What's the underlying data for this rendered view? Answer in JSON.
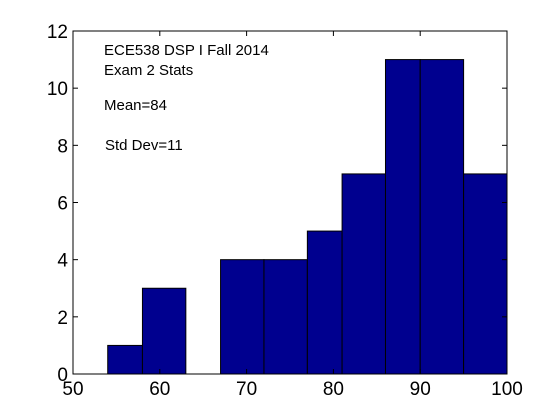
{
  "chart_data": {
    "type": "bar",
    "subtype": "histogram",
    "bins": [
      {
        "start": 54,
        "end": 58,
        "count": 1
      },
      {
        "start": 58,
        "end": 63,
        "count": 3
      },
      {
        "start": 63,
        "end": 67,
        "count": 0
      },
      {
        "start": 67,
        "end": 72,
        "count": 4
      },
      {
        "start": 72,
        "end": 77,
        "count": 4
      },
      {
        "start": 77,
        "end": 81,
        "count": 5
      },
      {
        "start": 81,
        "end": 86,
        "count": 7
      },
      {
        "start": 86,
        "end": 90,
        "count": 11
      },
      {
        "start": 90,
        "end": 95,
        "count": 11
      },
      {
        "start": 95,
        "end": 100,
        "count": 7
      }
    ],
    "xlim": [
      50,
      100
    ],
    "ylim": [
      0,
      12
    ],
    "xticks": [
      50,
      60,
      70,
      80,
      90,
      100
    ],
    "yticks": [
      0,
      2,
      4,
      6,
      8,
      10,
      12
    ],
    "title": "",
    "xlabel": "",
    "ylabel": "",
    "annotations": [
      "ECE538 DSP I Fall 2014",
      "Exam 2 Stats",
      "Mean=84",
      "Std Dev=11"
    ],
    "bar_color": "#00008f",
    "edge_color": "#000000",
    "grid": false
  }
}
